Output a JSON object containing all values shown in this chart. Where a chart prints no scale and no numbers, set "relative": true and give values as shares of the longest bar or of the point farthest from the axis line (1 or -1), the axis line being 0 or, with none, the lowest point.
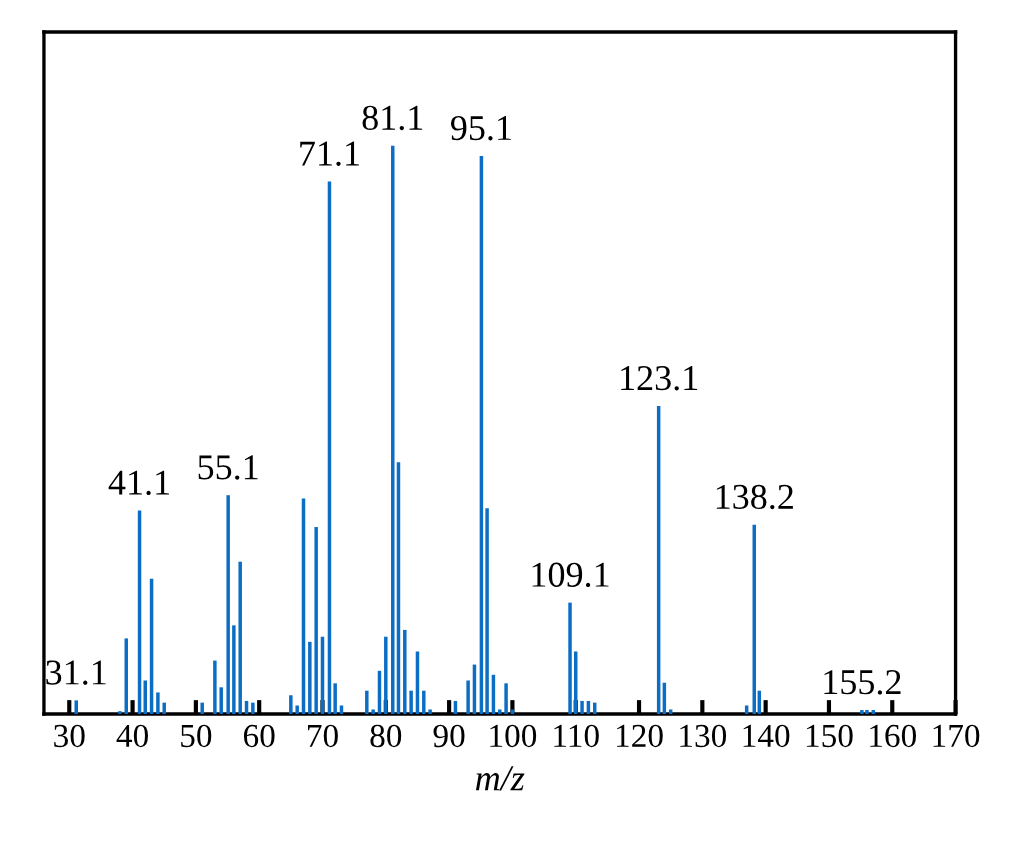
{
  "chart_data": {
    "type": "bar",
    "relative": true,
    "xlabel": "m/z",
    "color": "#0b6dc3",
    "x": [
      31.1,
      38,
      39,
      41.1,
      42,
      43,
      44,
      45,
      51,
      53,
      54,
      55.1,
      56,
      57,
      58,
      59,
      65,
      66,
      67,
      68,
      69,
      70,
      71.1,
      72,
      73,
      77,
      78,
      79,
      80,
      81.1,
      82,
      83,
      84,
      85,
      86,
      87,
      91,
      93,
      94,
      95.1,
      96,
      97,
      98,
      99,
      100,
      109.1,
      110,
      111,
      112,
      113,
      123.1,
      124,
      125,
      137,
      138.2,
      139,
      155.2,
      156,
      157
    ],
    "values": [
      0.024,
      0.005,
      0.133,
      0.358,
      0.059,
      0.238,
      0.038,
      0.02,
      0.02,
      0.094,
      0.047,
      0.385,
      0.156,
      0.268,
      0.023,
      0.02,
      0.033,
      0.015,
      0.379,
      0.127,
      0.329,
      0.136,
      0.937,
      0.054,
      0.015,
      0.041,
      0.008,
      0.076,
      0.136,
      1.0,
      0.443,
      0.148,
      0.041,
      0.11,
      0.041,
      0.008,
      0.023,
      0.059,
      0.087,
      0.982,
      0.362,
      0.069,
      0.008,
      0.054,
      0.008,
      0.196,
      0.11,
      0.023,
      0.023,
      0.02,
      0.542,
      0.055,
      0.008,
      0.015,
      0.333,
      0.041,
      0.007,
      0.007,
      0.007
    ],
    "xlim": [
      26,
      170
    ],
    "xticks": [
      30,
      40,
      50,
      60,
      70,
      80,
      90,
      100,
      110,
      120,
      130,
      140,
      150,
      160,
      170
    ],
    "annotations": [
      {
        "text": "31.1",
        "x": 31.1,
        "y": 0.024
      },
      {
        "text": "41.1",
        "x": 41.1,
        "y": 0.358
      },
      {
        "text": "55.1",
        "x": 55.1,
        "y": 0.385
      },
      {
        "text": "71.1",
        "x": 71.1,
        "y": 0.937
      },
      {
        "text": "81.1",
        "x": 81.1,
        "y": 1.0
      },
      {
        "text": "95.1",
        "x": 95.1,
        "y": 0.982
      },
      {
        "text": "109.1",
        "x": 109.1,
        "y": 0.196
      },
      {
        "text": "123.1",
        "x": 123.1,
        "y": 0.542
      },
      {
        "text": "138.2",
        "x": 138.2,
        "y": 0.333
      },
      {
        "text": "155.2",
        "x": 155.2,
        "y": 0.007
      }
    ]
  }
}
